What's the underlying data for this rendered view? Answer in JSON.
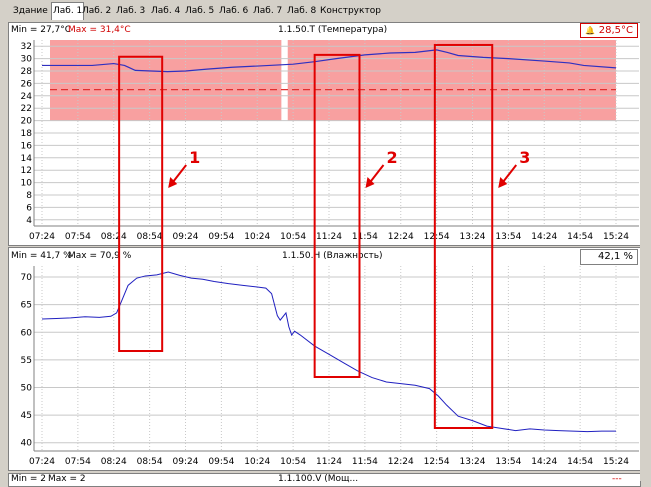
{
  "tabs": [
    "Здание",
    "Лаб. 1",
    "Лаб. 2",
    "Лаб. 3",
    "Лаб. 4",
    "Лаб. 5",
    "Лаб. 6",
    "Лаб. 7",
    "Лаб. 8",
    "Конструктор"
  ],
  "active_tab": "Лаб. 1",
  "x_ticks": [
    "07:24",
    "07:54",
    "08:24",
    "08:54",
    "09:24",
    "09:54",
    "10:24",
    "10:54",
    "11:24",
    "11:54",
    "12:24",
    "12:54",
    "13:24",
    "13:54",
    "14:24",
    "14:54",
    "15:24"
  ],
  "temp": {
    "min_label": "Min = 27,7°C",
    "max_label": "Max = 31,4°C",
    "title": "1.1.50.T (Температура)",
    "current": "28,5°C",
    "bell": "🔔",
    "y_ticks": [
      "32",
      "30",
      "28",
      "26",
      "24",
      "22",
      "20",
      "18",
      "16",
      "14",
      "12",
      "10",
      "8",
      "6",
      "4"
    ],
    "ylim": [
      3,
      33
    ],
    "alarm_band": [
      20,
      33
    ],
    "setpoint": 25,
    "series": [
      [
        0,
        28.9
      ],
      [
        1,
        28.9
      ],
      [
        1.4,
        28.9
      ],
      [
        2,
        29.2
      ],
      [
        2.3,
        28.9
      ],
      [
        2.6,
        28.1
      ],
      [
        3.5,
        27.9
      ],
      [
        4,
        28.0
      ],
      [
        4.6,
        28.3
      ],
      [
        5.3,
        28.6
      ],
      [
        6,
        28.8
      ],
      [
        7,
        29.1
      ],
      [
        7.6,
        29.5
      ],
      [
        8.2,
        30.0
      ],
      [
        9,
        30.6
      ],
      [
        9.7,
        30.9
      ],
      [
        10.4,
        31.0
      ],
      [
        11,
        31.4
      ],
      [
        11.3,
        31.0
      ],
      [
        11.6,
        30.5
      ],
      [
        12.3,
        30.2
      ],
      [
        13,
        30.0
      ],
      [
        14,
        29.6
      ],
      [
        14.7,
        29.3
      ],
      [
        15.1,
        28.9
      ],
      [
        16,
        28.5
      ]
    ],
    "gap": [
      6.7,
      6.85
    ],
    "annotations": [
      {
        "label": "1",
        "x_start": 2.15,
        "x_end": 3.35,
        "y_top": 30.3,
        "y_bottom": -2
      },
      {
        "label": "2",
        "x_start": 7.6,
        "x_end": 8.85,
        "y_top": 30.6,
        "y_bottom": -2
      },
      {
        "label": "3",
        "x_start": 10.95,
        "x_end": 12.55,
        "y_top": 32.2,
        "y_bottom": -2
      }
    ]
  },
  "hum": {
    "min_label": "Min = 41,7 %",
    "max_label": "Max = 70,9 %",
    "title": "1.1.50.H (Влажность)",
    "current": "42,1 %",
    "y_ticks": [
      "70",
      "65",
      "60",
      "55",
      "50",
      "45",
      "40"
    ],
    "ylim": [
      38.5,
      72
    ],
    "series": [
      [
        0,
        62.4
      ],
      [
        0.5,
        62.5
      ],
      [
        1,
        62.6
      ],
      [
        1.5,
        62.8
      ],
      [
        2,
        62.7
      ],
      [
        2.4,
        62.9
      ],
      [
        2.6,
        63.5
      ],
      [
        2.8,
        66.0
      ],
      [
        3.0,
        68.5
      ],
      [
        3.3,
        69.8
      ],
      [
        3.6,
        70.2
      ],
      [
        4.0,
        70.4
      ],
      [
        4.4,
        70.9
      ],
      [
        4.8,
        70.3
      ],
      [
        5.2,
        69.8
      ],
      [
        5.6,
        69.6
      ],
      [
        6.0,
        69.2
      ],
      [
        6.5,
        68.8
      ],
      [
        7.0,
        68.5
      ],
      [
        7.5,
        68.2
      ],
      [
        7.8,
        68.0
      ],
      [
        8.0,
        67.0
      ],
      [
        8.1,
        65.0
      ],
      [
        8.2,
        63.0
      ],
      [
        8.3,
        62.2
      ],
      [
        8.5,
        63.5
      ],
      [
        8.6,
        61.0
      ],
      [
        8.7,
        59.5
      ],
      [
        8.8,
        60.2
      ],
      [
        9.0,
        59.5
      ],
      [
        9.5,
        57.5
      ],
      [
        10,
        56.0
      ],
      [
        10.5,
        54.5
      ],
      [
        11,
        53.0
      ],
      [
        11.5,
        51.8
      ],
      [
        12,
        51.0
      ],
      [
        12.5,
        50.7
      ],
      [
        13,
        50.4
      ],
      [
        13.5,
        49.8
      ],
      [
        13.8,
        48.5
      ],
      [
        14.1,
        46.8
      ],
      [
        14.5,
        44.8
      ],
      [
        15,
        44.0
      ],
      [
        15.5,
        43.0
      ],
      [
        16,
        42.6
      ],
      [
        16.5,
        42.2
      ],
      [
        17,
        42.5
      ],
      [
        17.5,
        42.3
      ],
      [
        18,
        42.2
      ],
      [
        18.5,
        42.1
      ],
      [
        19,
        42.0
      ],
      [
        19.5,
        42.1
      ],
      [
        20,
        42.1
      ]
    ],
    "series_xscale": 20
  },
  "bottom": {
    "min_label": "Min = 2",
    "max_label": "Max = 2",
    "title": "1.1.100.V (Мощ...",
    "current": "---"
  }
}
